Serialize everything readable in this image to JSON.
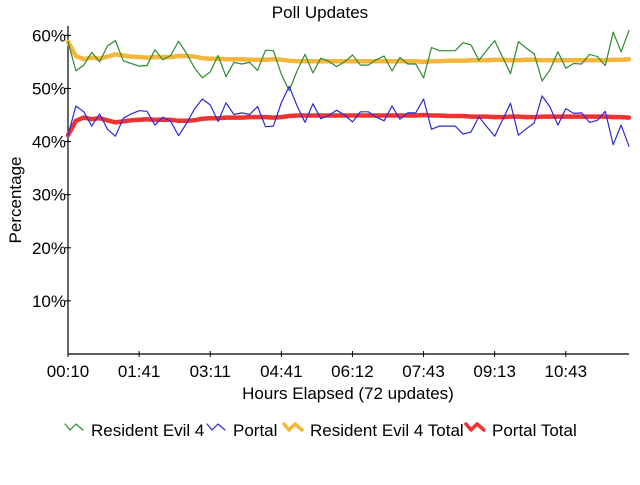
{
  "chart_data": {
    "type": "line",
    "title": "Poll Updates",
    "xlabel": "Hours Elapsed (72 updates)",
    "ylabel": "Percentage",
    "ylim": [
      0,
      61
    ],
    "yticks": [
      10,
      20,
      30,
      40,
      50,
      60
    ],
    "ytick_labels": [
      "10%",
      "20%",
      "30%",
      "40%",
      "50%",
      "60%"
    ],
    "update_count": 72,
    "xtick_updates": [
      0,
      9,
      18,
      27,
      36,
      45,
      54,
      63
    ],
    "xtick_labels": [
      "00:10",
      "01:41",
      "03:11",
      "04:41",
      "06:12",
      "07:43",
      "09:13",
      "10:43"
    ],
    "grid": false,
    "legend_position": "bottom",
    "series": [
      {
        "name": "Resident Evil 4",
        "color": "#2e8b2e",
        "style": "thin",
        "values": [
          58.8,
          53.3,
          54.4,
          56.8,
          55.0,
          58.0,
          59.0,
          55.2,
          54.7,
          54.2,
          54.3,
          57.3,
          55.4,
          56.2,
          58.9,
          56.6,
          53.9,
          52.0,
          53.1,
          56.2,
          52.2,
          54.9,
          54.6,
          54.9,
          53.4,
          57.2,
          57.1,
          52.7,
          49.6,
          53.3,
          56.4,
          52.9,
          55.7,
          55.1,
          54.1,
          55.0,
          56.3,
          54.4,
          54.4,
          55.4,
          56.1,
          53.3,
          55.8,
          54.6,
          54.6,
          52.0,
          57.7,
          57.1,
          57.1,
          57.1,
          58.6,
          58.2,
          55.3,
          57.2,
          59.0,
          55.9,
          52.8,
          58.8,
          57.6,
          56.5,
          51.4,
          53.5,
          56.9,
          53.8,
          54.7,
          54.6,
          56.4,
          56.0,
          54.3,
          60.6,
          56.9,
          60.9
        ]
      },
      {
        "name": "Portal",
        "color": "#2a2ad8",
        "style": "thin",
        "values": [
          41.2,
          46.7,
          45.6,
          42.9,
          45.2,
          42.3,
          41.0,
          44.4,
          45.2,
          45.8,
          45.7,
          43.1,
          44.6,
          43.8,
          41.1,
          43.4,
          46.1,
          48.0,
          46.9,
          43.8,
          47.3,
          45.1,
          45.4,
          45.1,
          46.6,
          42.8,
          42.9,
          47.3,
          50.4,
          46.7,
          43.6,
          47.1,
          44.3,
          44.9,
          45.9,
          45.0,
          43.7,
          45.6,
          45.6,
          44.6,
          43.9,
          46.7,
          44.2,
          45.4,
          45.4,
          48.0,
          42.3,
          42.9,
          42.9,
          42.9,
          41.4,
          41.8,
          44.7,
          42.8,
          41.0,
          44.1,
          47.2,
          41.2,
          42.4,
          43.5,
          48.6,
          46.5,
          43.1,
          46.2,
          45.3,
          45.4,
          43.6,
          44.0,
          45.7,
          39.4,
          43.1,
          39.1
        ]
      },
      {
        "name": "Resident Evil 4 Total",
        "color": "#f5b73b",
        "style": "thick",
        "values": [
          58.8,
          56.1,
          55.5,
          55.8,
          55.6,
          56.0,
          56.4,
          56.2,
          56.0,
          55.9,
          55.8,
          55.9,
          55.9,
          55.9,
          56.1,
          56.1,
          56.0,
          55.7,
          55.6,
          55.6,
          55.5,
          55.5,
          55.5,
          55.4,
          55.4,
          55.4,
          55.5,
          55.4,
          55.2,
          55.1,
          55.1,
          55.1,
          55.1,
          55.1,
          55.1,
          55.1,
          55.1,
          55.1,
          55.1,
          55.1,
          55.1,
          55.1,
          55.1,
          55.1,
          55.1,
          55.0,
          55.1,
          55.1,
          55.2,
          55.2,
          55.2,
          55.3,
          55.3,
          55.3,
          55.4,
          55.4,
          55.3,
          55.3,
          55.4,
          55.4,
          55.3,
          55.3,
          55.3,
          55.3,
          55.3,
          55.3,
          55.3,
          55.3,
          55.3,
          55.4,
          55.4,
          55.5
        ]
      },
      {
        "name": "Portal Total",
        "color": "#ee3333",
        "style": "thick",
        "values": [
          41.2,
          43.9,
          44.5,
          44.2,
          44.4,
          44.0,
          43.6,
          43.8,
          44.0,
          44.1,
          44.2,
          44.1,
          44.1,
          44.1,
          43.9,
          43.9,
          44.0,
          44.3,
          44.4,
          44.4,
          44.5,
          44.5,
          44.5,
          44.6,
          44.6,
          44.6,
          44.5,
          44.6,
          44.8,
          44.9,
          44.9,
          44.9,
          44.9,
          44.9,
          44.9,
          44.9,
          44.9,
          44.9,
          44.9,
          44.9,
          44.9,
          44.9,
          44.9,
          44.9,
          44.9,
          45.0,
          44.9,
          44.9,
          44.8,
          44.8,
          44.8,
          44.7,
          44.7,
          44.7,
          44.6,
          44.6,
          44.7,
          44.7,
          44.6,
          44.6,
          44.7,
          44.7,
          44.7,
          44.7,
          44.7,
          44.7,
          44.7,
          44.7,
          44.7,
          44.6,
          44.6,
          44.5
        ]
      }
    ]
  }
}
